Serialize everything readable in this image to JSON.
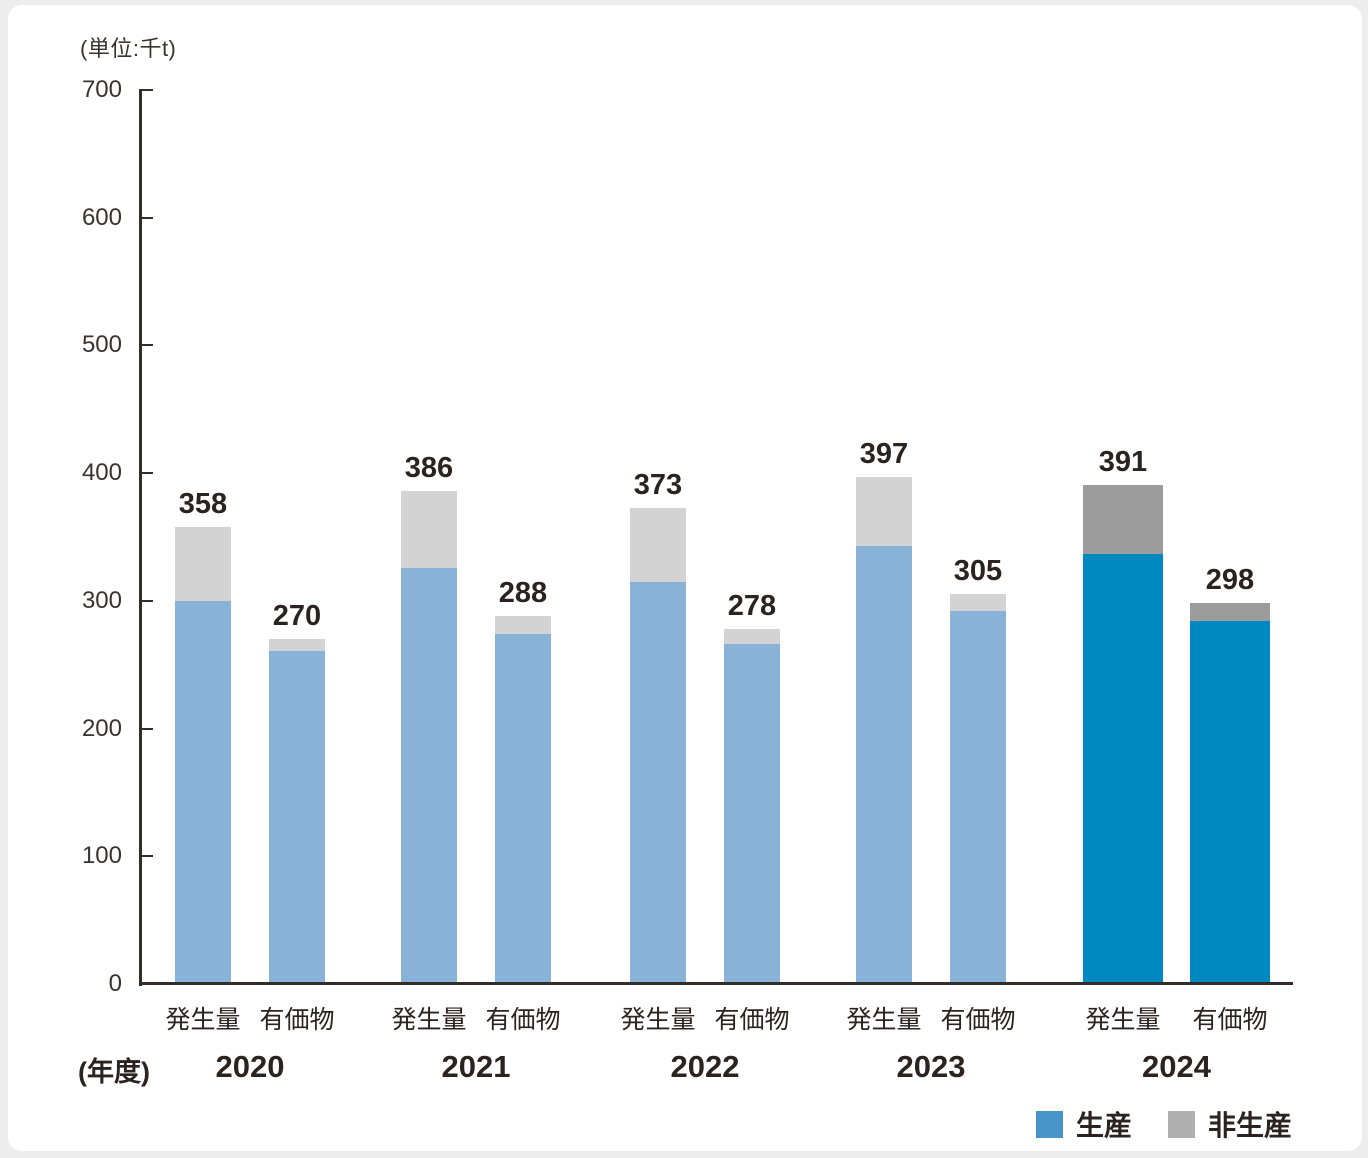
{
  "chart_data": {
    "type": "bar",
    "stacked": true,
    "unit_label": "(単位:千t)",
    "x_axis_caption": "(年度)",
    "ylim": [
      0,
      700
    ],
    "yticks": [
      0,
      100,
      200,
      300,
      400,
      500,
      600,
      700
    ],
    "bar_categories": [
      "発生量",
      "有価物"
    ],
    "legend": [
      {
        "name": "生産",
        "swatch_color": "#4795c8"
      },
      {
        "name": "非生産",
        "swatch_color": "#b0b0b0"
      }
    ],
    "colors": {
      "production": "#88b2d8",
      "non_production": "#d3d3d3",
      "production_current": "#0088c1",
      "non_production_current": "#9c9c9c"
    },
    "groups": [
      {
        "year": "2020",
        "current": false,
        "bars": [
          {
            "label": "発生量",
            "total": 358,
            "production": 300,
            "non_production": 58
          },
          {
            "label": "有価物",
            "total": 270,
            "production": 261,
            "non_production": 9
          }
        ]
      },
      {
        "year": "2021",
        "current": false,
        "bars": [
          {
            "label": "発生量",
            "total": 386,
            "production": 326,
            "non_production": 60
          },
          {
            "label": "有価物",
            "total": 288,
            "production": 274,
            "non_production": 14
          }
        ]
      },
      {
        "year": "2022",
        "current": false,
        "bars": [
          {
            "label": "発生量",
            "total": 373,
            "production": 315,
            "non_production": 58
          },
          {
            "label": "有価物",
            "total": 278,
            "production": 266,
            "non_production": 12
          }
        ]
      },
      {
        "year": "2023",
        "current": false,
        "bars": [
          {
            "label": "発生量",
            "total": 397,
            "production": 343,
            "non_production": 54
          },
          {
            "label": "有価物",
            "total": 305,
            "production": 292,
            "non_production": 13
          }
        ]
      },
      {
        "year": "2024",
        "current": true,
        "bars": [
          {
            "label": "発生量",
            "total": 391,
            "production": 337,
            "non_production": 54
          },
          {
            "label": "有価物",
            "total": 298,
            "production": 284,
            "non_production": 14
          }
        ]
      }
    ]
  }
}
